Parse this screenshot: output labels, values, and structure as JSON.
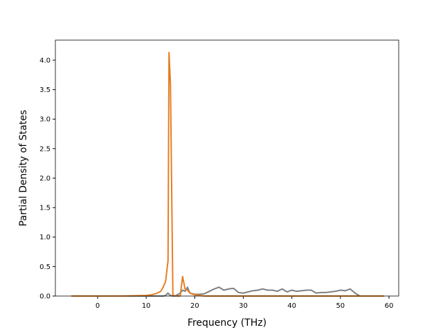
{
  "chart_data": {
    "type": "line",
    "xlabel": "Frequency (THz)",
    "ylabel": "Partial Density of States",
    "x": [
      -5.4,
      0,
      5,
      10,
      11,
      12,
      13,
      13.5,
      14,
      14.5,
      14.7,
      15,
      15.5,
      16,
      17,
      17.5,
      18,
      18.5,
      19,
      20,
      21,
      22,
      23,
      24,
      25,
      26,
      27,
      28,
      29,
      30,
      31,
      32,
      33,
      34,
      35,
      36,
      37,
      38,
      39,
      40,
      41,
      42,
      43,
      44,
      45,
      46,
      47,
      48,
      49,
      50,
      51,
      52,
      53,
      54,
      55,
      59
    ],
    "series": [
      {
        "color": "#7f7f7f",
        "values": [
          0,
          0,
          0,
          0,
          0,
          0,
          0,
          0,
          0.01,
          0.05,
          0.03,
          0.01,
          0,
          0,
          0.05,
          0.1,
          0.08,
          0.15,
          0.05,
          0.03,
          0.03,
          0.04,
          0.08,
          0.12,
          0.15,
          0.1,
          0.12,
          0.13,
          0.06,
          0.05,
          0.07,
          0.09,
          0.1,
          0.12,
          0.1,
          0.1,
          0.08,
          0.12,
          0.07,
          0.1,
          0.08,
          0.09,
          0.1,
          0.1,
          0.05,
          0.06,
          0.06,
          0.07,
          0.08,
          0.1,
          0.09,
          0.12,
          0.05,
          0,
          0,
          0
        ]
      },
      {
        "color": "#e67e22",
        "values": [
          0,
          0,
          0,
          0.01,
          0.02,
          0.04,
          0.08,
          0.15,
          0.25,
          0.6,
          4.13,
          3.6,
          0.02,
          0,
          0,
          0.33,
          0.12,
          0.1,
          0.05,
          0.02,
          0.01,
          0,
          0,
          0,
          0,
          0,
          0,
          0,
          0,
          0,
          0,
          0,
          0,
          0,
          0,
          0,
          0,
          0,
          0,
          0,
          0,
          0,
          0,
          0,
          0,
          0,
          0,
          0,
          0,
          0,
          0,
          0,
          0,
          0,
          0,
          0
        ]
      }
    ],
    "xlim": [
      -8.7,
      62.0
    ],
    "xticks": [
      0,
      10,
      20,
      30,
      40,
      50,
      60
    ],
    "ylim": [
      0,
      4.34
    ],
    "yticks": [
      {
        "value": 0,
        "label": "0.0"
      },
      {
        "value": 0.5,
        "label": "0.5"
      },
      {
        "value": 1,
        "label": "1.0"
      },
      {
        "value": 1.5,
        "label": "1.5"
      },
      {
        "value": 2,
        "label": "2.0"
      },
      {
        "value": 2.5,
        "label": "2.5"
      },
      {
        "value": 3,
        "label": "3.0"
      },
      {
        "value": 3.5,
        "label": "3.5"
      },
      {
        "value": 4,
        "label": "4.0"
      }
    ],
    "grid": false
  }
}
